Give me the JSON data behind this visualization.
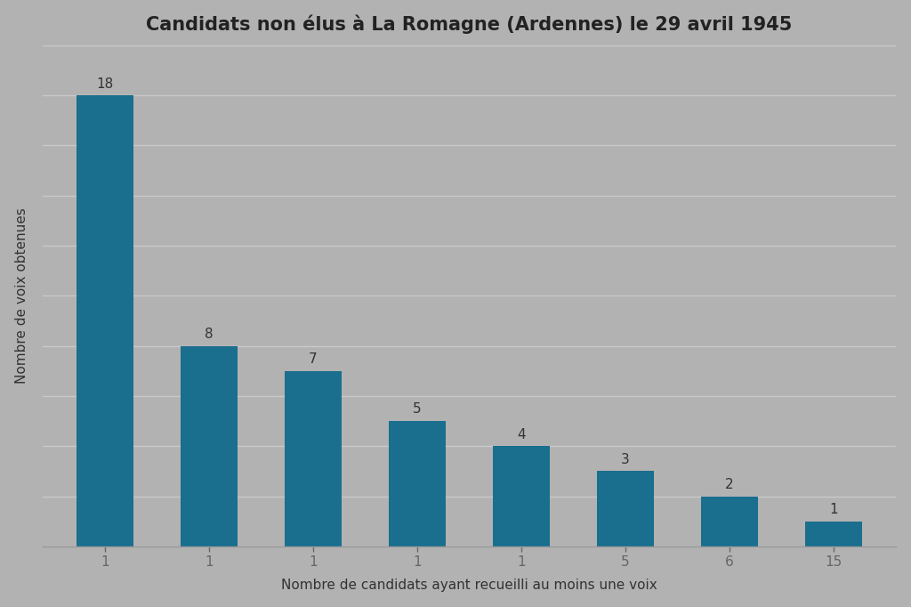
{
  "title": "Candidats non élus à La Romagne (Ardennes) le 29 avril 1945",
  "xlabel": "Nombre de candidats ayant recueilli au moins une voix",
  "ylabel": "Nombre de voix obtenues",
  "x_labels": [
    "1",
    "1",
    "1",
    "1",
    "1",
    "5",
    "6",
    "15"
  ],
  "y_values": [
    18,
    8,
    7,
    5,
    4,
    3,
    2,
    1
  ],
  "bar_color": "#1a6e8e",
  "background_color": "#b2b2b2",
  "plot_bg_color": "#b2b2b2",
  "title_fontsize": 15,
  "label_fontsize": 11,
  "tick_fontsize": 11,
  "annotation_fontsize": 11,
  "ylim": [
    0,
    20
  ],
  "yticks": [
    0,
    2,
    4,
    6,
    8,
    10,
    12,
    14,
    16,
    18,
    20
  ],
  "grid_color": "#c9c9c9",
  "grid_linewidth": 1.0,
  "bar_width": 0.55,
  "spine_color": "#999999"
}
